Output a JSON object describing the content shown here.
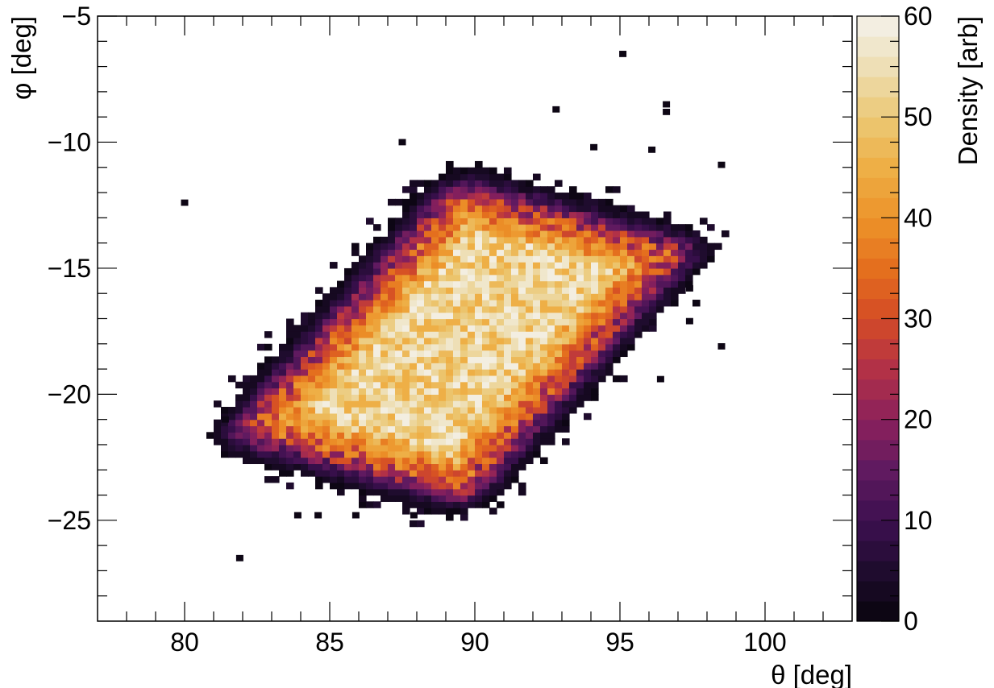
{
  "chart_data": {
    "type": "heatmap",
    "title": "",
    "xlabel": "θ [deg]",
    "ylabel": "φ [deg]",
    "zlabel": "Density [arb]",
    "xlim": [
      77,
      103
    ],
    "ylim": [
      -29,
      -5
    ],
    "zlim": [
      0,
      60
    ],
    "x_ticks": [
      "80",
      "85",
      "90",
      "95",
      "100"
    ],
    "y_ticks": [
      "−5",
      "−10",
      "−15",
      "−20",
      "−25"
    ],
    "z_ticks": [
      "0",
      "10",
      "20",
      "30",
      "40",
      "50",
      "60"
    ],
    "bin_width": {
      "theta": 0.25,
      "phi": 0.25
    },
    "colormap": "inferno (black → purple → orange → pale yellow)",
    "distribution": {
      "shape": "tilted rounded parallelogram with noisy, sparse edges",
      "core_corners": [
        [
          82.5,
          -21.5
        ],
        [
          89.5,
          -12.5
        ],
        [
          96.5,
          -14.0
        ],
        [
          89.0,
          -23.5
        ]
      ],
      "peak_density": 55,
      "plateau_density": "40–55 inside core",
      "edge_falloff": "rapid drop to 1–10 within ~1 deg of core boundary"
    },
    "outlier_bins": [
      [
        95.1,
        -6.5
      ],
      [
        81.9,
        -26.5
      ],
      [
        98.5,
        -10.9
      ],
      [
        98.5,
        -18.1
      ],
      [
        92.8,
        -8.7
      ],
      [
        96.6,
        -8.5
      ],
      [
        96.6,
        -8.8
      ],
      [
        87.9,
        -24.8
      ],
      [
        85.9,
        -24.8
      ],
      [
        84.6,
        -24.8
      ],
      [
        83.9,
        -24.8
      ],
      [
        80.0,
        -12.4
      ],
      [
        97.4,
        -17.1
      ],
      [
        97.4,
        -15.8
      ],
      [
        96.4,
        -19.4
      ],
      [
        81.4,
        -21.0
      ],
      [
        96.1,
        -10.3
      ],
      [
        94.1,
        -10.2
      ],
      [
        87.5,
        -10.0
      ]
    ]
  }
}
